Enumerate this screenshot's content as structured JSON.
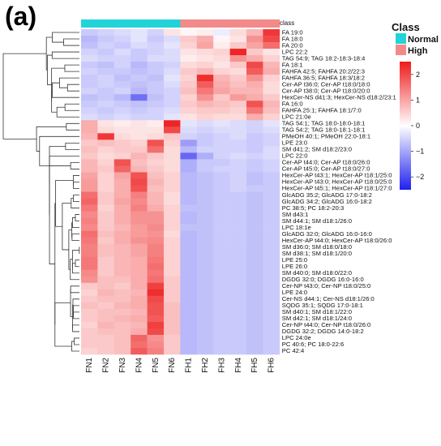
{
  "panel_label": "(a)",
  "annotation_label": "class",
  "legend": {
    "title": "Class",
    "entries": [
      {
        "name": "Normal",
        "color": "#22d3d8"
      },
      {
        "name": "High",
        "color": "#f28a8a"
      }
    ]
  },
  "colorbar": {
    "ticks": [
      "2",
      "1",
      "0",
      "−1",
      "−2"
    ],
    "tick_values": [
      2,
      1,
      0,
      -1,
      -2
    ],
    "range": [
      -2.5,
      2.5
    ],
    "colors": {
      "low": "#2020ee",
      "mid": "#ffffff",
      "high": "#ee1c1c"
    }
  },
  "chart_data": {
    "type": "heatmap",
    "samples": [
      "FN1",
      "FN2",
      "FN3",
      "FN4",
      "FN5",
      "FN6",
      "FH1",
      "FH2",
      "FH3",
      "FH4",
      "FH5",
      "FH6"
    ],
    "sample_class": [
      "Normal",
      "Normal",
      "Normal",
      "Normal",
      "Normal",
      "Normal",
      "High",
      "High",
      "High",
      "High",
      "High",
      "High"
    ],
    "rows": [
      "FA 19:0",
      "FA 18:0",
      "FA 20:0",
      "LPC 22:2",
      "TAG 54:9; TAG 18:2-18:3-18:4",
      "FA 18:1",
      "FAHFA 42:5; FAHFA 20:2/22:3",
      "FAHFA 36:5; FAHFA 18:3/18:2",
      "Cer-AP t36:0; Cer-AP t18:0/18:0",
      "Cer-AP t38:0; Cer-AP t18:0/20:0",
      "HexCer-NS d41:3; HexCer-NS d18:2/23:1",
      "FA 16:0",
      "FAHFA 25:1; FAHFA 18:1/7:0",
      "LPC 21:0e",
      "TAG 54:1; TAG 18:0-18:0-18:1",
      "TAG 54:2; TAG 18:0-18:1-18:1",
      "PMeOH 40:1; PMeOH 22:0-18:1",
      "LPE 23:0",
      "SM d41:2; SM d18:2/23:0",
      "LPC 22:0",
      "Cer-AP t44:0; Cer-AP t18:0/26:0",
      "Cer-AP t45:0; Cer-AP t18:0/27:0",
      "HexCer-AP t43:1; HexCer-AP t18:1/25:0",
      "HexCer-AP t43:0; HexCer-AP t18:0/25:0",
      "HexCer-AP t45:1; HexCer-AP t18:1/27:0",
      "GlcADG 35:2; GlcADG 17:0-18:2",
      "GlcADG 34:2; GlcADG 16:0-18:2",
      "PC 38:5; PC 18:2-20:3",
      "SM d43:1",
      "SM d44:1; SM d18:1/26:0",
      "LPC 18:1e",
      "GlcADG 32:0; GlcADG 16:0-16:0",
      "HexCer-AP t44:0; HexCer-AP t18:0/26:0",
      "SM d36:0; SM d18:0/18:0",
      "SM d38:1; SM d18:1/20:0",
      "LPE 25:0",
      "LPE 26:0",
      "SM d40:0; SM d18:0/22:0",
      "DGDG 32:0; DGDG 16:0-16:0",
      "Cer-NP t43:0; Cer-NP t18:0/25:0",
      "LPE 24:0",
      "Cer-NS d44:1; Cer-NS d18:1/26:0",
      "SQDG 35:1; SQDG 17:0-18:1",
      "SM d40:1; SM d18:1/22:0",
      "SM d42:1; SM d18:1/24:0",
      "Cer-NP t44:0; Cer-NP t18:0/26:0",
      "DGDG 32:2; DGDG 14:0-18:2",
      "LPC 24:0e",
      "PC 40:6; PC 18:0-22:6",
      "PC 42:4"
    ],
    "values": [
      [
        -0.6,
        -0.5,
        -0.4,
        -0.3,
        -0.5,
        0.3,
        0.1,
        0.2,
        -0.2,
        0.4,
        0.8,
        2.2
      ],
      [
        -0.8,
        -0.6,
        -0.5,
        -0.3,
        -0.6,
        -0.4,
        0.6,
        0.9,
        0.1,
        0.3,
        1.2,
        2.0
      ],
      [
        -0.7,
        -0.5,
        -0.6,
        -0.4,
        -0.5,
        -0.3,
        0.5,
        1.0,
        0.2,
        0.6,
        1.0,
        1.6
      ],
      [
        -0.5,
        -0.6,
        -0.4,
        -0.6,
        -0.5,
        -0.4,
        0.3,
        0.4,
        0.5,
        2.4,
        0.6,
        0.3
      ],
      [
        -0.4,
        -0.5,
        -0.5,
        -0.6,
        -0.4,
        -0.4,
        0.2,
        0.3,
        0.4,
        1.2,
        0.9,
        0.5
      ],
      [
        -0.6,
        -0.7,
        -0.5,
        -0.8,
        -0.6,
        -0.5,
        0.4,
        0.5,
        0.3,
        0.6,
        2.0,
        0.8
      ],
      [
        -0.5,
        -0.6,
        -0.6,
        -0.7,
        -0.6,
        -0.4,
        0.6,
        0.8,
        0.5,
        0.4,
        1.8,
        0.9
      ],
      [
        -0.6,
        -0.5,
        -0.7,
        -0.6,
        -0.7,
        -0.3,
        0.5,
        2.3,
        0.8,
        0.6,
        1.2,
        0.5
      ],
      [
        -0.6,
        -0.5,
        -0.6,
        -0.7,
        -0.6,
        -0.4,
        0.6,
        1.8,
        0.9,
        0.7,
        0.9,
        0.4
      ],
      [
        -0.5,
        -0.6,
        -0.5,
        -0.8,
        -0.6,
        -0.5,
        0.7,
        1.5,
        1.0,
        0.8,
        0.8,
        0.4
      ],
      [
        -0.7,
        -0.6,
        -0.8,
        -1.6,
        -0.7,
        -0.5,
        0.5,
        1.2,
        0.6,
        1.1,
        0.9,
        0.6
      ],
      [
        -0.6,
        -0.5,
        -0.6,
        -0.7,
        -0.6,
        -0.5,
        0.6,
        0.8,
        0.7,
        0.6,
        1.9,
        0.8
      ],
      [
        -0.5,
        -0.6,
        -0.5,
        -0.6,
        -0.5,
        -0.4,
        0.5,
        0.6,
        0.6,
        0.5,
        1.5,
        0.7
      ],
      [
        -0.4,
        -0.5,
        -0.4,
        -0.5,
        -0.5,
        -0.3,
        0.3,
        0.5,
        0.4,
        0.4,
        0.9,
        0.5
      ],
      [
        0.9,
        0.3,
        0.2,
        0.3,
        0.2,
        2.4,
        -0.3,
        -0.4,
        -0.3,
        -0.4,
        -0.5,
        -0.3
      ],
      [
        0.9,
        0.4,
        0.3,
        0.3,
        0.3,
        2.0,
        -0.4,
        -0.5,
        -0.4,
        -0.4,
        -0.5,
        -0.4
      ],
      [
        0.8,
        2.2,
        0.4,
        0.3,
        0.4,
        0.6,
        -0.5,
        -0.6,
        -0.5,
        -0.4,
        -0.6,
        -0.5
      ],
      [
        0.6,
        0.7,
        0.6,
        0.5,
        1.9,
        0.5,
        -1.1,
        -0.6,
        -0.5,
        -0.5,
        -0.6,
        -0.5
      ],
      [
        0.7,
        0.5,
        0.6,
        0.6,
        1.6,
        0.4,
        -0.8,
        -0.5,
        -0.5,
        -0.5,
        -0.6,
        -0.4
      ],
      [
        0.6,
        0.4,
        0.5,
        0.8,
        0.6,
        0.4,
        -1.7,
        -0.9,
        -0.5,
        -0.4,
        -0.5,
        -0.4
      ],
      [
        0.8,
        0.5,
        1.9,
        0.7,
        0.5,
        0.4,
        -0.9,
        -0.6,
        -0.6,
        -0.5,
        -0.6,
        -0.5
      ],
      [
        0.8,
        0.6,
        1.7,
        0.8,
        0.6,
        0.4,
        -0.9,
        -0.6,
        -0.5,
        -0.5,
        -0.6,
        -0.5
      ],
      [
        1.0,
        0.5,
        1.0,
        1.9,
        0.7,
        0.5,
        -0.8,
        -0.7,
        -0.6,
        -0.5,
        -0.7,
        -0.6
      ],
      [
        1.1,
        0.5,
        0.9,
        2.0,
        0.8,
        0.5,
        -0.8,
        -0.7,
        -0.6,
        -0.5,
        -0.7,
        -0.6
      ],
      [
        1.1,
        0.5,
        0.9,
        1.9,
        0.7,
        0.5,
        -0.8,
        -0.7,
        -0.6,
        -0.5,
        -0.6,
        -0.6
      ],
      [
        1.6,
        0.6,
        0.9,
        1.4,
        0.8,
        0.4,
        -0.8,
        -0.7,
        -0.6,
        -0.6,
        -0.7,
        -0.6
      ],
      [
        1.7,
        0.6,
        1.0,
        1.3,
        0.8,
        0.4,
        -0.8,
        -0.7,
        -0.6,
        -0.6,
        -0.7,
        -0.6
      ],
      [
        1.5,
        0.5,
        0.9,
        1.4,
        0.9,
        0.5,
        -0.7,
        -0.7,
        -0.6,
        -0.6,
        -0.7,
        -0.6
      ],
      [
        1.3,
        0.6,
        0.9,
        1.2,
        1.2,
        0.5,
        -0.8,
        -0.7,
        -0.6,
        -0.6,
        -0.7,
        -0.6
      ],
      [
        1.4,
        0.6,
        0.9,
        1.2,
        1.2,
        0.5,
        -0.8,
        -0.7,
        -0.6,
        -0.6,
        -0.7,
        -0.6
      ],
      [
        1.3,
        0.6,
        0.8,
        1.1,
        1.3,
        0.5,
        -0.7,
        -0.7,
        -0.6,
        -0.6,
        -0.7,
        -0.6
      ],
      [
        1.6,
        0.7,
        0.9,
        1.1,
        1.2,
        0.4,
        -0.8,
        -0.7,
        -0.6,
        -0.6,
        -0.7,
        -0.6
      ],
      [
        1.5,
        0.6,
        0.9,
        1.2,
        1.3,
        0.5,
        -0.8,
        -0.7,
        -0.6,
        -0.6,
        -0.7,
        -0.6
      ],
      [
        1.4,
        0.7,
        0.8,
        1.0,
        1.4,
        0.5,
        -0.8,
        -0.7,
        -0.6,
        -0.6,
        -0.7,
        -0.6
      ],
      [
        1.4,
        0.7,
        0.8,
        1.0,
        1.4,
        0.5,
        -0.8,
        -0.7,
        -0.6,
        -0.6,
        -0.7,
        -0.6
      ],
      [
        1.5,
        0.6,
        0.8,
        0.9,
        1.5,
        0.5,
        -0.8,
        -0.7,
        -0.6,
        -0.6,
        -0.7,
        -0.6
      ],
      [
        1.5,
        0.6,
        0.8,
        0.9,
        1.6,
        0.5,
        -0.8,
        -0.7,
        -0.6,
        -0.6,
        -0.7,
        -0.6
      ],
      [
        1.3,
        0.6,
        0.8,
        0.9,
        1.5,
        0.5,
        -0.8,
        -0.7,
        -0.6,
        -0.6,
        -0.7,
        -0.6
      ],
      [
        1.2,
        0.7,
        0.7,
        0.9,
        1.6,
        0.6,
        -0.8,
        -0.7,
        -0.6,
        -0.6,
        -0.7,
        -0.6
      ],
      [
        0.6,
        0.7,
        0.6,
        0.9,
        2.1,
        0.6,
        -0.8,
        -0.7,
        -0.6,
        -0.6,
        -0.7,
        -0.6
      ],
      [
        0.5,
        0.8,
        0.7,
        0.8,
        2.3,
        0.6,
        -0.8,
        -0.7,
        -0.6,
        -0.6,
        -0.7,
        -0.6
      ],
      [
        0.6,
        0.7,
        0.7,
        0.9,
        2.0,
        0.6,
        -0.8,
        -0.7,
        -0.6,
        -0.6,
        -0.7,
        -0.6
      ],
      [
        0.7,
        0.6,
        0.8,
        0.9,
        1.9,
        0.7,
        -0.8,
        -0.7,
        -0.6,
        -0.6,
        -0.7,
        -0.6
      ],
      [
        0.6,
        0.7,
        0.7,
        0.8,
        1.9,
        0.7,
        -0.8,
        -0.7,
        -0.6,
        -0.6,
        -0.7,
        -0.6
      ],
      [
        0.6,
        0.7,
        0.8,
        0.9,
        1.8,
        0.7,
        -0.8,
        -0.7,
        -0.6,
        -0.6,
        -0.7,
        -0.6
      ],
      [
        0.5,
        0.8,
        0.7,
        0.8,
        2.1,
        0.7,
        -0.8,
        -0.7,
        -0.6,
        -0.6,
        -0.7,
        -0.6
      ],
      [
        0.6,
        0.7,
        0.7,
        0.9,
        2.0,
        0.7,
        -0.8,
        -0.7,
        -0.6,
        -0.6,
        -0.7,
        -0.6
      ],
      [
        0.6,
        0.6,
        0.7,
        1.7,
        1.2,
        0.6,
        -0.8,
        -0.7,
        -0.6,
        -0.6,
        -0.7,
        -0.6
      ],
      [
        0.6,
        0.6,
        0.7,
        1.6,
        1.3,
        0.6,
        -0.8,
        -0.7,
        -0.6,
        -0.6,
        -0.7,
        -0.6
      ],
      [
        0.5,
        0.6,
        0.7,
        1.8,
        1.4,
        0.6,
        -0.8,
        -0.7,
        -0.6,
        -0.6,
        -0.7,
        -0.6
      ]
    ]
  }
}
